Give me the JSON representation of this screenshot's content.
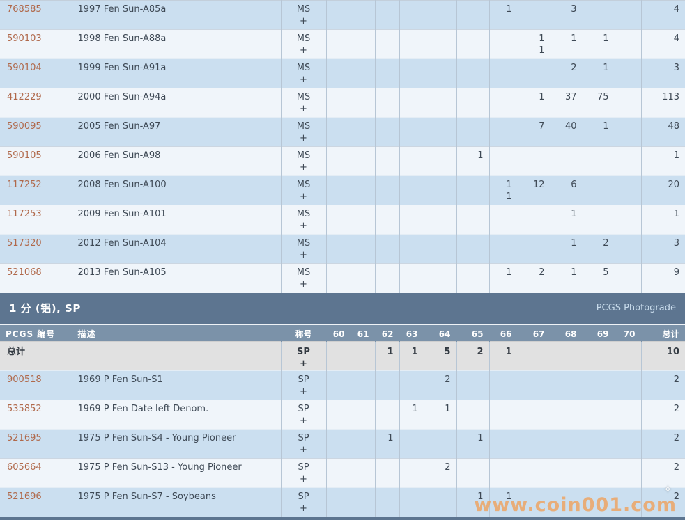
{
  "grade_columns": [
    "60",
    "61",
    "62",
    "63",
    "64",
    "65",
    "66",
    "67",
    "68",
    "69",
    "70"
  ],
  "table1": {
    "rows": [
      {
        "pcgs_no": "768585",
        "desc": "1997 Fen Sun-A85a",
        "designation": [
          "MS",
          "+"
        ],
        "grades": {
          "66": [
            "1"
          ],
          "68": [
            "3"
          ]
        },
        "total": "4"
      },
      {
        "pcgs_no": "590103",
        "desc": "1998 Fen Sun-A88a",
        "designation": [
          "MS",
          "+"
        ],
        "grades": {
          "67": [
            "1",
            "1"
          ],
          "68": [
            "1"
          ],
          "69": [
            "1"
          ]
        },
        "total": "4"
      },
      {
        "pcgs_no": "590104",
        "desc": "1999 Fen Sun-A91a",
        "designation": [
          "MS",
          "+"
        ],
        "grades": {
          "68": [
            "2"
          ],
          "69": [
            "1"
          ]
        },
        "total": "3"
      },
      {
        "pcgs_no": "412229",
        "desc": "2000 Fen Sun-A94a",
        "designation": [
          "MS",
          "+"
        ],
        "grades": {
          "67": [
            "1"
          ],
          "68": [
            "37"
          ],
          "69": [
            "75"
          ]
        },
        "total": "113"
      },
      {
        "pcgs_no": "590095",
        "desc": "2005 Fen Sun-A97",
        "designation": [
          "MS",
          "+"
        ],
        "grades": {
          "67": [
            "7"
          ],
          "68": [
            "40"
          ],
          "69": [
            "1"
          ]
        },
        "total": "48"
      },
      {
        "pcgs_no": "590105",
        "desc": "2006 Fen Sun-A98",
        "designation": [
          "MS",
          "+"
        ],
        "grades": {
          "65": [
            "1"
          ]
        },
        "total": "1"
      },
      {
        "pcgs_no": "117252",
        "desc": "2008 Fen Sun-A100",
        "designation": [
          "MS",
          "+"
        ],
        "grades": {
          "66": [
            "1",
            "1"
          ],
          "67": [
            "12"
          ],
          "68": [
            "6"
          ]
        },
        "total": "20"
      },
      {
        "pcgs_no": "117253",
        "desc": "2009 Fen Sun-A101",
        "designation": [
          "MS",
          "+"
        ],
        "grades": {
          "68": [
            "1"
          ]
        },
        "total": "1"
      },
      {
        "pcgs_no": "517320",
        "desc": "2012 Fen Sun-A104",
        "designation": [
          "MS",
          "+"
        ],
        "grades": {
          "68": [
            "1"
          ],
          "69": [
            "2"
          ]
        },
        "total": "3"
      },
      {
        "pcgs_no": "521068",
        "desc": "2013 Fen Sun-A105",
        "designation": [
          "MS",
          "+"
        ],
        "grades": {
          "66": [
            "1"
          ],
          "67": [
            "2"
          ],
          "68": [
            "1"
          ],
          "69": [
            "5"
          ]
        },
        "total": "9"
      }
    ]
  },
  "section2": {
    "title": "1 分 (铝), SP",
    "photograde_link": "PCGS Photograde",
    "headers": {
      "pcgs_no": "PCGS 编号",
      "desc": "描述",
      "designation": "称号",
      "total": "总计"
    },
    "total_row": {
      "label": "总计",
      "designation": [
        "SP",
        "+"
      ],
      "grades": {
        "62": [
          "1"
        ],
        "63": [
          "1"
        ],
        "64": [
          "5"
        ],
        "65": [
          "2"
        ],
        "66": [
          "1"
        ]
      },
      "total": "10"
    },
    "rows": [
      {
        "pcgs_no": "900518",
        "desc": "1969 P Fen Sun-S1",
        "designation": [
          "SP",
          "+"
        ],
        "grades": {
          "64": [
            "2"
          ]
        },
        "total": "2"
      },
      {
        "pcgs_no": "535852",
        "desc": "1969 P Fen Date left Denom.",
        "designation": [
          "SP",
          "+"
        ],
        "grades": {
          "63": [
            "1"
          ],
          "64": [
            "1"
          ]
        },
        "total": "2"
      },
      {
        "pcgs_no": "521695",
        "desc": "1975 P Fen Sun-S4 - Young Pioneer",
        "designation": [
          "SP",
          "+"
        ],
        "grades": {
          "62": [
            "1"
          ],
          "65": [
            "1"
          ]
        },
        "total": "2"
      },
      {
        "pcgs_no": "605664",
        "desc": "1975 P Fen Sun-S13 - Young Pioneer",
        "designation": [
          "SP",
          "+"
        ],
        "grades": {
          "64": [
            "2"
          ]
        },
        "total": "2"
      },
      {
        "pcgs_no": "521696",
        "desc": "1975 P Fen Sun-S7 - Soybeans",
        "designation": [
          "SP",
          "+"
        ],
        "grades": {
          "65": [
            "1"
          ],
          "66": [
            "1"
          ]
        },
        "total": "2"
      }
    ]
  },
  "watermark": {
    "text": "www.coin001.com",
    "color": "#eca668"
  },
  "icons": {
    "sparkle": "✧"
  },
  "colors": {
    "row_blue": "#cbdff0",
    "row_light": "#f0f5fa",
    "totals_row": "#e1e1e1",
    "section_header": "#5d7590",
    "column_header": "#7b92a9",
    "pcgs_link": "#b0694b"
  }
}
